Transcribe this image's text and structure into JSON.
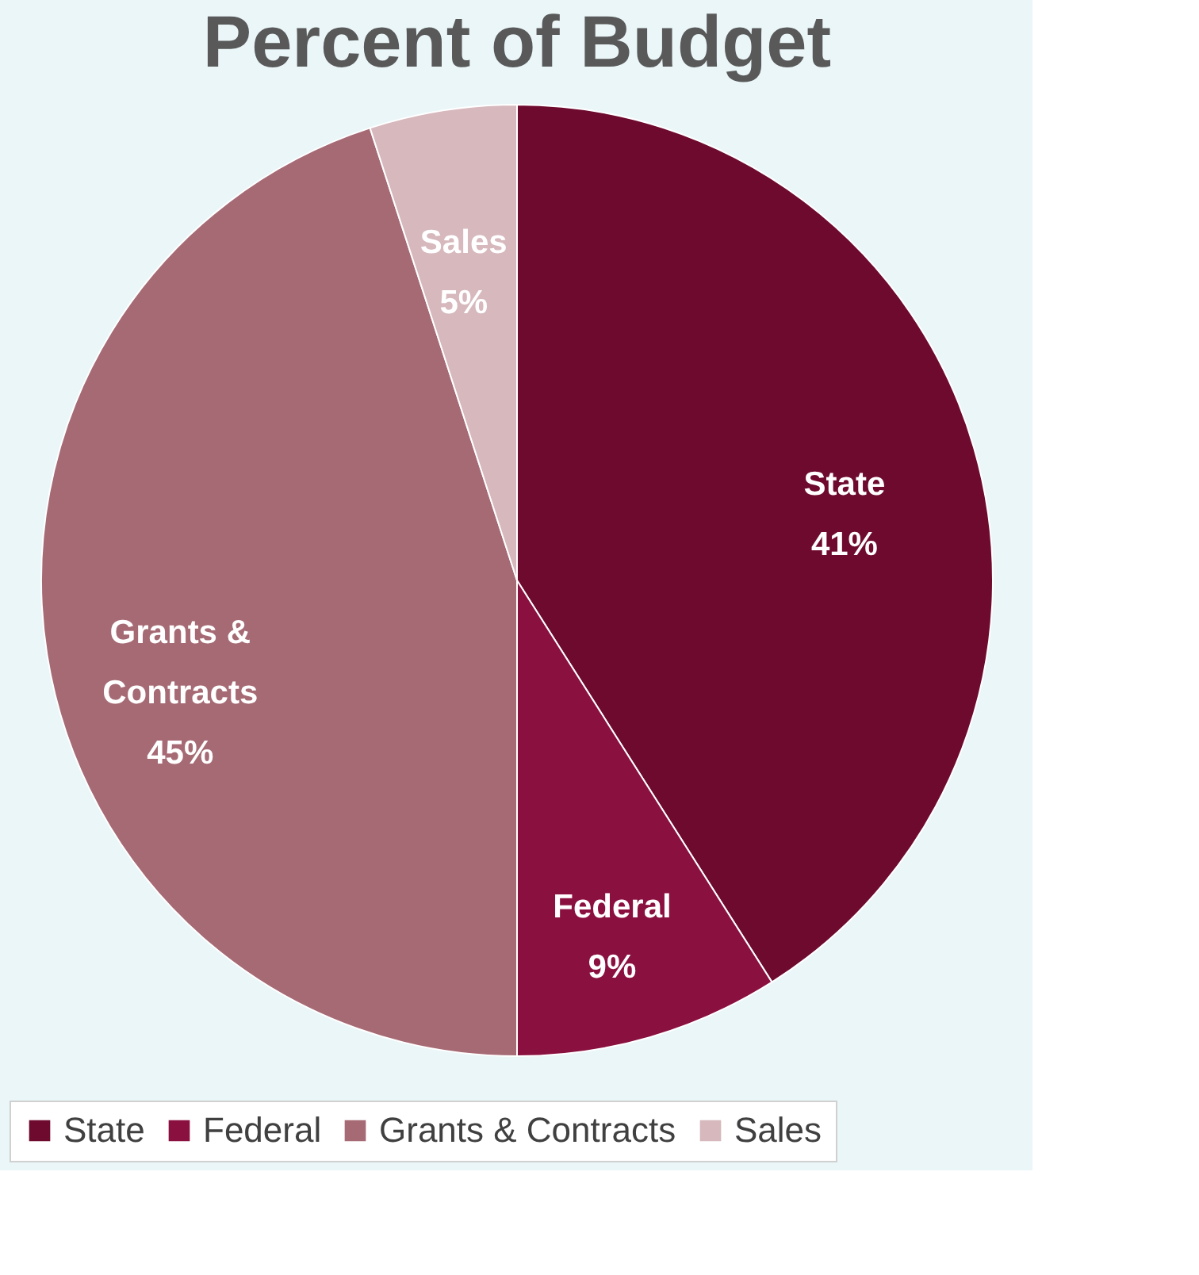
{
  "chart_data": {
    "type": "pie",
    "title": "Percent of Budget",
    "categories": [
      "State",
      "Federal",
      "Grants & Contracts",
      "Sales"
    ],
    "values": [
      41,
      9,
      45,
      5
    ],
    "value_labels": [
      "41%",
      "9%",
      "45%",
      "5%"
    ],
    "colors": [
      "#6e0a2e",
      "#8a1040",
      "#a66a74",
      "#d6b8bd"
    ],
    "legend": "bottom"
  }
}
